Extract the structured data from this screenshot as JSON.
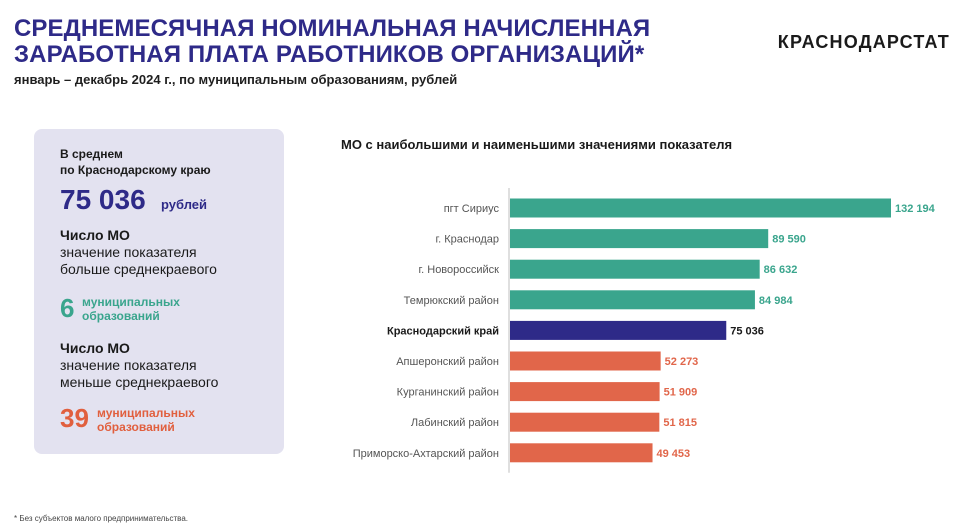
{
  "header": {
    "title_line1": "СРЕДНЕМЕСЯЧНАЯ НОМИНАЛЬНАЯ НАЧИСЛЕННАЯ",
    "title_line2": "ЗАРАБОТНАЯ ПЛАТА РАБОТНИКОВ ОРГАНИЗАЦИЙ*",
    "subtitle": "январь – декабрь 2024 г., по муниципальным образованиям, рублей",
    "brand": "КРАСНОДАРСТАТ"
  },
  "summary": {
    "avg_label_line1": "В среднем",
    "avg_label_line2": "по Краснодарскому краю",
    "avg_value": "75 036",
    "avg_unit": "рублей",
    "above": {
      "title": "Число МО",
      "desc_line1": "значение показателя",
      "desc_line2": "больше среднекраевого",
      "count": "6",
      "label_line1": "муниципальных",
      "label_line2": "образований"
    },
    "below": {
      "title": "Число МО",
      "desc_line1": "значение показателя",
      "desc_line2": "меньше среднекраевого",
      "count": "39",
      "label_line1": "муниципальных",
      "label_line2": "образований"
    }
  },
  "chart_data": {
    "type": "bar",
    "orientation": "horizontal",
    "title": "МО с наибольшими и наименьшими значениями показателя",
    "xlim": [
      0,
      132194
    ],
    "colors": {
      "above": "#3aa58d",
      "region": "#2e2a88",
      "below": "#e1664a"
    },
    "categories": [
      "пгт Сириус",
      "г. Краснодар",
      "г. Новороссийск",
      "Темрюкский район",
      "Краснодарский край",
      "Апшеронский район",
      "Курганинский район",
      "Лабинский район",
      "Приморско-Ахтарский район"
    ],
    "values": [
      132194,
      89590,
      86632,
      84984,
      75036,
      52273,
      51909,
      51815,
      49453
    ],
    "value_labels": [
      "132 194",
      "89 590",
      "86 632",
      "84 984",
      "75 036",
      "52 273",
      "51 909",
      "51 815",
      "49 453"
    ],
    "groups": [
      "above",
      "above",
      "above",
      "above",
      "region",
      "below",
      "below",
      "below",
      "below"
    ],
    "bold_categories": [
      "Краснодарский край"
    ]
  },
  "footnote": "* Без субъектов малого предпринимательства."
}
